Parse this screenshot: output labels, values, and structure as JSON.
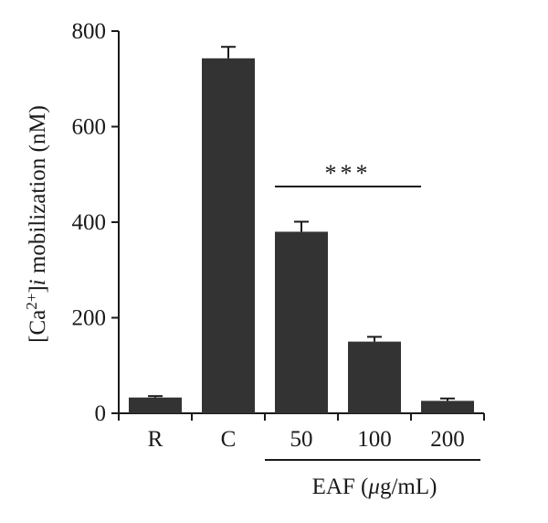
{
  "chart_data": {
    "type": "bar",
    "title": "",
    "categories": [
      "R",
      "C",
      "50",
      "100",
      "200"
    ],
    "values": [
      33,
      743,
      380,
      150,
      26
    ],
    "errors": [
      3,
      24,
      21,
      10,
      5
    ],
    "ylim": [
      0,
      800
    ],
    "yticks": [
      "0",
      "200",
      "400",
      "600",
      "800"
    ],
    "ylabel": {
      "open": "[Ca",
      "sup": "2+",
      "close": "]",
      "italic": "i",
      "rest": " mobilization (nM)"
    },
    "group_label": {
      "prefix": "EAF (",
      "mu": "μ",
      "suffix": "g/mL)"
    },
    "significance": {
      "label": "***",
      "from_category": "50",
      "to_category": "200"
    },
    "bar_color": "#333333",
    "grid": false
  }
}
